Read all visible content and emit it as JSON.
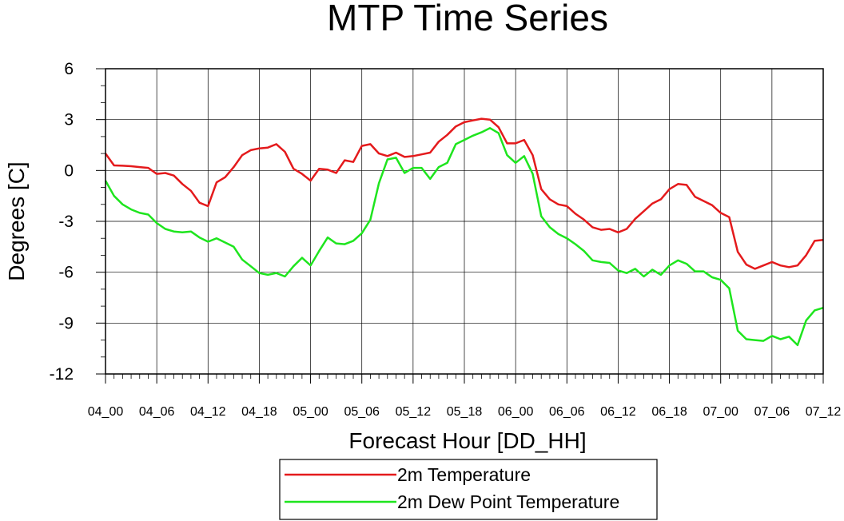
{
  "chart_data": {
    "type": "line",
    "title": "MTP Time Series",
    "xlabel": "Forecast Hour [DD_HH]",
    "ylabel": "Degrees [C]",
    "xlim": [
      0,
      84
    ],
    "ylim": [
      -12,
      6
    ],
    "yticks": [
      6,
      3,
      0,
      -3,
      -6,
      -9,
      -12
    ],
    "ytick_labels": [
      "6",
      "3",
      "0",
      "-3",
      "-6",
      "-9",
      "-12"
    ],
    "xtick_positions": [
      0,
      6,
      12,
      18,
      24,
      30,
      36,
      42,
      48,
      54,
      60,
      66,
      72,
      78,
      84
    ],
    "xtick_labels": [
      "04_00",
      "04_06",
      "04_12",
      "04_18",
      "05_00",
      "05_06",
      "05_12",
      "05_18",
      "06_00",
      "06_06",
      "06_12",
      "06_18",
      "07_00",
      "07_06",
      "07_12"
    ],
    "grid": true,
    "legend_position": "bottom",
    "series": [
      {
        "name": "2m Temperature",
        "color": "#e41a1c",
        "values": [
          1.0,
          0.3,
          0.28,
          0.25,
          0.2,
          0.15,
          -0.2,
          -0.15,
          -0.3,
          -0.8,
          -1.2,
          -1.9,
          -2.1,
          -0.7,
          -0.4,
          0.2,
          0.9,
          1.2,
          1.3,
          1.35,
          1.55,
          1.1,
          0.1,
          -0.2,
          -0.6,
          0.1,
          0.05,
          -0.15,
          0.6,
          0.5,
          1.45,
          1.55,
          1.0,
          0.85,
          1.05,
          0.8,
          0.85,
          0.95,
          1.05,
          1.7,
          2.1,
          2.6,
          2.85,
          2.95,
          3.05,
          3.0,
          2.55,
          1.6,
          1.6,
          1.8,
          0.9,
          -1.1,
          -1.7,
          -2.0,
          -2.1,
          -2.55,
          -2.9,
          -3.35,
          -3.5,
          -3.45,
          -3.65,
          -3.45,
          -2.85,
          -2.4,
          -1.95,
          -1.7,
          -1.1,
          -0.8,
          -0.85,
          -1.55,
          -1.8,
          -2.05,
          -2.5,
          -2.75,
          -4.8,
          -5.55,
          -5.8,
          -5.6,
          -5.4,
          -5.6,
          -5.7,
          -5.6,
          -5.0,
          -4.15,
          -4.1
        ]
      },
      {
        "name": "2m Dew Point Temperature",
        "color": "#1ee51e",
        "values": [
          -0.6,
          -1.5,
          -2.0,
          -2.3,
          -2.5,
          -2.6,
          -3.1,
          -3.45,
          -3.6,
          -3.65,
          -3.6,
          -3.95,
          -4.2,
          -4.0,
          -4.25,
          -4.5,
          -5.25,
          -5.65,
          -6.05,
          -6.15,
          -6.05,
          -6.25,
          -5.65,
          -5.15,
          -5.6,
          -4.75,
          -3.95,
          -4.3,
          -4.35,
          -4.15,
          -3.7,
          -2.9,
          -0.75,
          0.65,
          0.75,
          -0.15,
          0.15,
          0.15,
          -0.5,
          0.2,
          0.45,
          1.55,
          1.8,
          2.05,
          2.25,
          2.5,
          2.2,
          0.9,
          0.45,
          0.85,
          -0.2,
          -2.7,
          -3.35,
          -3.75,
          -4.0,
          -4.35,
          -4.75,
          -5.3,
          -5.4,
          -5.45,
          -5.9,
          -6.05,
          -5.8,
          -6.25,
          -5.85,
          -6.15,
          -5.6,
          -5.3,
          -5.5,
          -5.95,
          -5.95,
          -6.3,
          -6.45,
          -6.95,
          -9.45,
          -9.95,
          -10.0,
          -10.05,
          -9.75,
          -9.95,
          -9.8,
          -10.3,
          -8.85,
          -8.25,
          -8.1
        ]
      }
    ]
  }
}
